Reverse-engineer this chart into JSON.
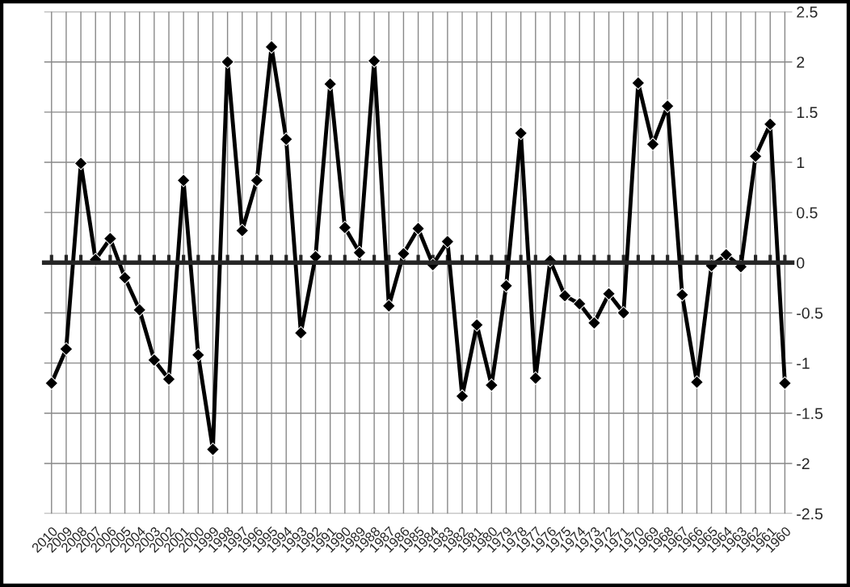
{
  "chart_data": {
    "type": "line",
    "categories": [
      "2010",
      "2009",
      "2008",
      "2007",
      "2006",
      "2005",
      "2004",
      "2003",
      "2002",
      "2001",
      "2000",
      "1999",
      "1998",
      "1997",
      "1996",
      "1995",
      "1994",
      "1993",
      "1992",
      "1991",
      "1990",
      "1989",
      "1988",
      "1987",
      "1986",
      "1985",
      "1984",
      "1983",
      "1982",
      "1981",
      "1980",
      "1979",
      "1978",
      "1977",
      "1976",
      "1975",
      "1974",
      "1973",
      "1972",
      "1971",
      "1970",
      "1969",
      "1968",
      "1967",
      "1966",
      "1965",
      "1964",
      "1963",
      "1962",
      "1961",
      "1960"
    ],
    "series": [
      {
        "color": "#000000",
        "values": [
          -1.2,
          -0.86,
          0.99,
          0.03,
          0.24,
          -0.15,
          -0.47,
          -0.97,
          -1.16,
          0.82,
          -0.92,
          -1.86,
          2.0,
          0.32,
          0.82,
          2.15,
          1.23,
          -0.7,
          0.06,
          1.78,
          0.35,
          0.1,
          2.01,
          -0.43,
          0.09,
          0.34,
          -0.02,
          0.21,
          -1.33,
          -0.62,
          -1.22,
          -0.23,
          1.29,
          -1.15,
          0.02,
          -0.33,
          -0.41,
          -0.6,
          -0.31,
          -0.5,
          1.79,
          1.18,
          1.56,
          -0.32,
          -1.19,
          -0.03,
          0.08,
          -0.04,
          1.06,
          1.38,
          -1.2
        ]
      }
    ],
    "ylim": [
      -2.5,
      2.5
    ],
    "yticks": [
      {
        "value": 2.5,
        "label": "2.5"
      },
      {
        "value": 2,
        "label": "2"
      },
      {
        "value": 1.5,
        "label": "1.5"
      },
      {
        "value": 1,
        "label": "1"
      },
      {
        "value": 0.5,
        "label": "0.5"
      },
      {
        "value": 0,
        "label": "0"
      },
      {
        "value": -0.5,
        "label": "-0.5"
      },
      {
        "value": -1,
        "label": "-1"
      },
      {
        "value": -1.5,
        "label": "-1.5"
      },
      {
        "value": -2,
        "label": "-2"
      },
      {
        "value": -2.5,
        "label": "-2.5"
      }
    ],
    "grid": true,
    "marker": "diamond",
    "line_style": "solid"
  }
}
